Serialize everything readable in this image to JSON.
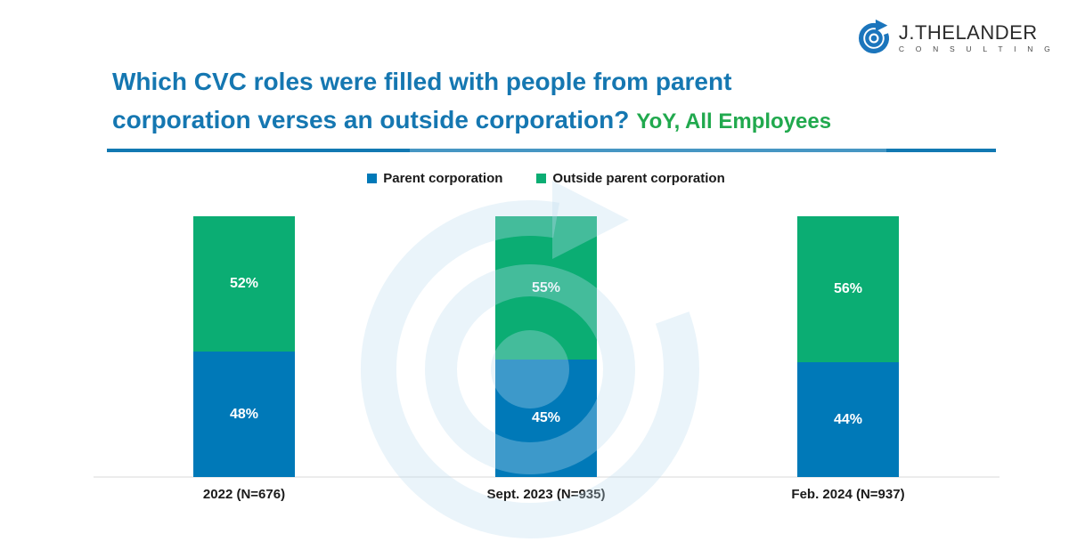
{
  "brand": {
    "name": "J.THELANDER",
    "subtitle": "C O N S U L T I N G",
    "logo_color": "#1b75bc"
  },
  "title": {
    "line1": "Which CVC roles were filled with people from parent",
    "line2": "corporation verses an outside corporation?",
    "suffix": "YoY, All Employees",
    "title_color": "#1577b1",
    "suffix_color": "#21a94e",
    "underline_color": "#1279b2"
  },
  "chart_data": {
    "type": "bar",
    "stacked": true,
    "orientation": "vertical",
    "title": "Which CVC roles were filled with people from parent corporation verses an outside corporation? YoY, All Employees",
    "categories": [
      "2022 (N=676)",
      "Sept. 2023 (N=935)",
      "Feb. 2024 (N=937)"
    ],
    "series": [
      {
        "name": "Parent corporation",
        "color": "#0079b8",
        "values": [
          48,
          45,
          44
        ]
      },
      {
        "name": "Outside parent corporation",
        "color": "#0bad73",
        "values": [
          52,
          55,
          56
        ]
      }
    ],
    "value_suffix": "%",
    "ylim": [
      0,
      100
    ],
    "grid": false,
    "legend_position": "top",
    "data_label_color": "#ffffff",
    "axis_line_color": "#ececec"
  }
}
